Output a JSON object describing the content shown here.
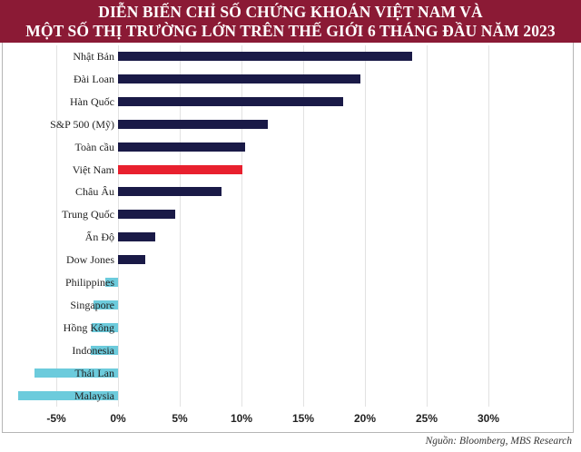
{
  "title_line1": "DIỄN BIẾN CHỈ SỐ CHỨNG KHOÁN VIỆT NAM VÀ",
  "title_line2": "MỘT SỐ THỊ TRƯỜNG LỚN TRÊN THẾ GIỚI 6 THÁNG ĐẦU NĂM  2023",
  "source": "Nguồn: Bloomberg, MBS Research",
  "colors": {
    "title_bg": "#8b1a35",
    "positive": "#1a1a47",
    "highlight": "#e8202e",
    "negative": "#6ccbdc"
  },
  "chart_data": {
    "type": "bar",
    "orientation": "horizontal",
    "title": "DIỄN BIẾN CHỈ SỐ CHỨNG KHOÁN VIỆT NAM VÀ MỘT SỐ THỊ TRƯỜNG LỚN TRÊN THẾ GIỚI 6 THÁNG ĐẦU NĂM 2023",
    "xlabel": "",
    "ylabel": "",
    "unit": "%",
    "categories": [
      "Nhật Bản",
      "Đài Loan",
      "Hàn Quốc",
      "S&P 500 (Mỹ)",
      "Toàn cầu",
      "Việt Nam",
      "Châu Âu",
      "Trung Quốc",
      "Ấn Độ",
      "Dow Jones",
      "Philippines",
      "Singapore",
      "Hồng Kông",
      "Indonesia",
      "Thái Lan",
      "Malaysia"
    ],
    "values": [
      23.8,
      19.6,
      18.2,
      12.1,
      10.3,
      10.1,
      8.4,
      4.6,
      3.0,
      2.2,
      -1.0,
      -2.0,
      -2.1,
      -2.2,
      -6.8,
      -8.1
    ],
    "highlight": "Việt Nam",
    "xlim": [
      -8.5,
      31
    ],
    "xticks": [
      -5,
      0,
      5,
      10,
      15,
      20,
      25,
      30
    ],
    "xtick_labels": [
      "-5%",
      "0%",
      "5%",
      "10%",
      "15%",
      "20%",
      "25%",
      "30%"
    ],
    "grid": "vertical",
    "legend": "none",
    "source": "Nguồn: Bloomberg, MBS Research"
  }
}
